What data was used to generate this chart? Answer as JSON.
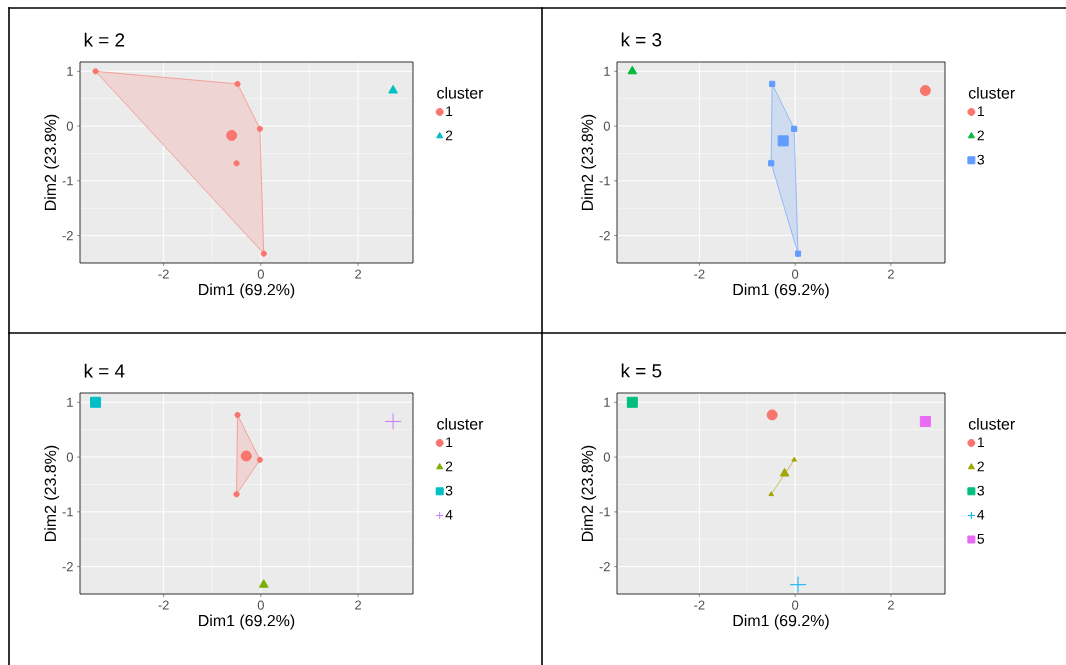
{
  "chart_data": [
    {
      "type": "scatter",
      "title": "k = 2",
      "xlabel": "Dim1 (69.2%)",
      "ylabel": "Dim2 (23.8%)",
      "legend_title": "cluster",
      "legend": "right",
      "grid": true,
      "xlim": [
        -3.72,
        3.13
      ],
      "ylim": [
        -2.5,
        1.17
      ],
      "xticks": [
        -2,
        0,
        2
      ],
      "yticks": [
        -2,
        -1,
        0,
        1
      ],
      "series": [
        {
          "type": "area",
          "color": "#f8766d",
          "x": [
            -3.4,
            -0.48,
            -0.02,
            0.06,
            -3.4
          ],
          "values": [
            1.0,
            0.77,
            -0.05,
            -2.33,
            1.0
          ]
        },
        {
          "name": "1",
          "color": "#f8766d",
          "marker": "circle",
          "x": [
            -3.4,
            -0.48,
            -0.02,
            -0.5,
            0.06
          ],
          "values": [
            1.0,
            0.77,
            -0.05,
            -0.68,
            -2.33
          ]
        },
        {
          "color": "#f8766d",
          "marker": "circle",
          "x": [
            -0.6
          ],
          "values": [
            -0.17
          ]
        },
        {
          "name": "2",
          "color": "#00bfc4",
          "marker": "triangle",
          "x": [
            2.72
          ],
          "values": [
            0.65
          ]
        }
      ]
    },
    {
      "type": "scatter",
      "title": "k = 3",
      "xlabel": "Dim1 (69.2%)",
      "ylabel": "Dim2 (23.8%)",
      "legend_title": "cluster",
      "legend": "right",
      "grid": true,
      "xlim": [
        -3.72,
        3.13
      ],
      "ylim": [
        -2.5,
        1.17
      ],
      "xticks": [
        -2,
        0,
        2
      ],
      "yticks": [
        -2,
        -1,
        0,
        1
      ],
      "series": [
        {
          "name": "1",
          "color": "#f8766d",
          "marker": "circle",
          "x": [
            2.72
          ],
          "values": [
            0.65
          ]
        },
        {
          "name": "2",
          "color": "#00ba38",
          "marker": "triangle",
          "x": [
            -3.4
          ],
          "values": [
            1.0
          ]
        },
        {
          "type": "area",
          "color": "#619cff",
          "x": [
            -0.48,
            -0.02,
            0.06,
            -0.5,
            -0.48
          ],
          "values": [
            0.77,
            -0.05,
            -2.33,
            -0.68,
            0.77
          ]
        },
        {
          "name": "3",
          "color": "#619cff",
          "marker": "square",
          "x": [
            -0.48,
            -0.02,
            -0.5,
            0.06
          ],
          "values": [
            0.77,
            -0.05,
            -0.68,
            -2.33
          ]
        },
        {
          "color": "#619cff",
          "marker": "square",
          "x": [
            -0.25
          ],
          "values": [
            -0.27
          ]
        }
      ]
    },
    {
      "type": "scatter",
      "title": "k = 4",
      "xlabel": "Dim1 (69.2%)",
      "ylabel": "Dim2 (23.8%)",
      "legend_title": "cluster",
      "legend": "right",
      "grid": true,
      "xlim": [
        -3.72,
        3.13
      ],
      "ylim": [
        -2.5,
        1.17
      ],
      "xticks": [
        -2,
        0,
        2
      ],
      "yticks": [
        -2,
        -1,
        0,
        1
      ],
      "series": [
        {
          "type": "area",
          "color": "#f8766d",
          "x": [
            -0.48,
            -0.02,
            -0.5,
            -0.48
          ],
          "values": [
            0.77,
            -0.05,
            -0.68,
            0.77
          ]
        },
        {
          "name": "1",
          "color": "#f8766d",
          "marker": "circle",
          "x": [
            -0.48,
            -0.02,
            -0.5
          ],
          "values": [
            0.77,
            -0.05,
            -0.68
          ]
        },
        {
          "color": "#f8766d",
          "marker": "circle",
          "x": [
            -0.3
          ],
          "values": [
            0.02
          ]
        },
        {
          "name": "2",
          "color": "#7cae00",
          "marker": "triangle",
          "x": [
            0.06
          ],
          "values": [
            -2.33
          ]
        },
        {
          "name": "3",
          "color": "#00bfc4",
          "marker": "square",
          "x": [
            -3.4
          ],
          "values": [
            1.0
          ]
        },
        {
          "name": "4",
          "color": "#c77cff",
          "marker": "cross",
          "x": [
            2.72
          ],
          "values": [
            0.65
          ]
        }
      ]
    },
    {
      "type": "scatter",
      "title": "k = 5",
      "xlabel": "Dim1 (69.2%)",
      "ylabel": "Dim2 (23.8%)",
      "legend_title": "cluster",
      "legend": "right",
      "grid": true,
      "xlim": [
        -3.72,
        3.13
      ],
      "ylim": [
        -2.5,
        1.17
      ],
      "xticks": [
        -2,
        0,
        2
      ],
      "yticks": [
        -2,
        -1,
        0,
        1
      ],
      "series": [
        {
          "name": "1",
          "color": "#f8766d",
          "marker": "circle",
          "x": [
            -0.48
          ],
          "values": [
            0.77
          ]
        },
        {
          "type": "line",
          "color": "#a3a500",
          "x": [
            -0.02,
            -0.5
          ],
          "values": [
            -0.05,
            -0.68
          ]
        },
        {
          "name": "2",
          "color": "#a3a500",
          "marker": "triangle",
          "x": [
            -0.02,
            -0.5
          ],
          "values": [
            -0.05,
            -0.68
          ]
        },
        {
          "color": "#a3a500",
          "marker": "triangle",
          "x": [
            -0.22
          ],
          "values": [
            -0.3
          ]
        },
        {
          "name": "3",
          "color": "#00bf7d",
          "marker": "square",
          "x": [
            -3.4
          ],
          "values": [
            1.0
          ]
        },
        {
          "name": "4",
          "color": "#00b0f6",
          "marker": "cross",
          "x": [
            0.06
          ],
          "values": [
            -2.33
          ]
        },
        {
          "name": "5",
          "color": "#e76bf3",
          "marker": "square",
          "x": [
            2.72
          ],
          "values": [
            0.65
          ]
        }
      ]
    }
  ]
}
